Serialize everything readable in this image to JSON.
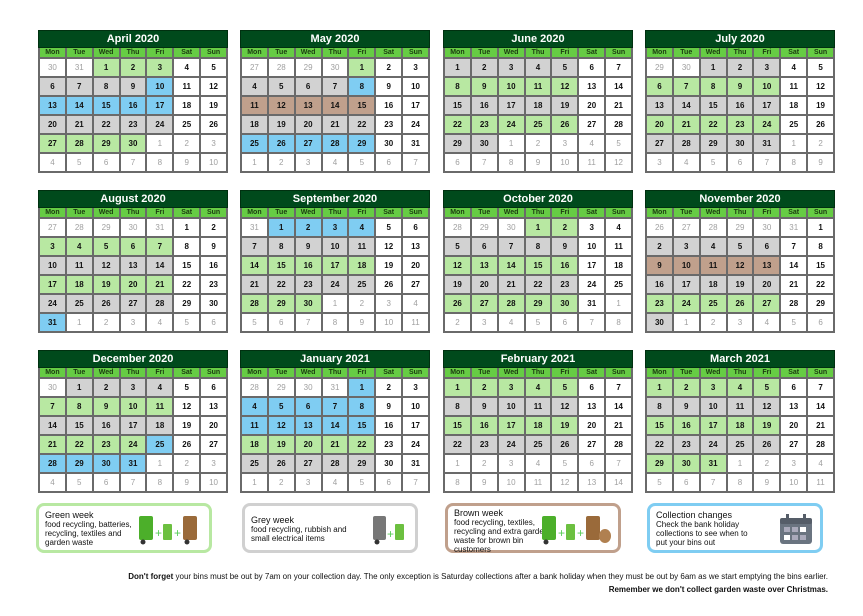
{
  "weekdays": [
    "Mon",
    "Tue",
    "Wed",
    "Thu",
    "Fri",
    "Sat",
    "Sun"
  ],
  "colors": {
    "title": "#004a1c",
    "header": "#66cc44",
    "green": "#b8e8a2",
    "grey": "#d2d2d2",
    "blue": "#7fcdf2",
    "brown": "#c0a08c"
  },
  "type_codes": {
    "o": "other-month",
    "w": "no-collection",
    "g": "green-week",
    "y": "grey-week",
    "b": "collection-change",
    "r": "brown-week"
  },
  "months": [
    {
      "title": "April 2020",
      "weeks": [
        [
          30,
          31,
          1,
          2,
          3,
          4,
          5
        ],
        [
          6,
          7,
          8,
          9,
          10,
          11,
          12
        ],
        [
          13,
          14,
          15,
          16,
          17,
          18,
          19
        ],
        [
          20,
          21,
          22,
          23,
          24,
          25,
          26
        ],
        [
          27,
          28,
          29,
          30,
          1,
          2,
          3
        ],
        [
          4,
          5,
          6,
          7,
          8,
          9,
          10
        ]
      ],
      "types": [
        "oogggww",
        "yyyybww",
        "bbbbbww",
        "yyyyyww",
        "ggggooo",
        "ooooooo"
      ]
    },
    {
      "title": "May 2020",
      "weeks": [
        [
          27,
          28,
          29,
          30,
          1,
          2,
          3
        ],
        [
          4,
          5,
          6,
          7,
          8,
          9,
          10
        ],
        [
          11,
          12,
          13,
          14,
          15,
          16,
          17
        ],
        [
          18,
          19,
          20,
          21,
          22,
          23,
          24
        ],
        [
          25,
          26,
          27,
          28,
          29,
          30,
          31
        ],
        [
          1,
          2,
          3,
          4,
          5,
          6,
          7
        ]
      ],
      "types": [
        "oooogww",
        "yyyybww",
        "rrrrrww",
        "yyyyyww",
        "bbbbbww",
        "ooooooo"
      ]
    },
    {
      "title": "June 2020",
      "weeks": [
        [
          1,
          2,
          3,
          4,
          5,
          6,
          7
        ],
        [
          8,
          9,
          10,
          11,
          12,
          13,
          14
        ],
        [
          15,
          16,
          17,
          18,
          19,
          20,
          21
        ],
        [
          22,
          23,
          24,
          25,
          26,
          27,
          28
        ],
        [
          29,
          30,
          1,
          2,
          3,
          4,
          5
        ],
        [
          6,
          7,
          8,
          9,
          10,
          11,
          12
        ]
      ],
      "types": [
        "yyyyyww",
        "gggggww",
        "yyyyyww",
        "gggggww",
        "yyooooo",
        "ooooooo"
      ]
    },
    {
      "title": "July 2020",
      "weeks": [
        [
          29,
          30,
          1,
          2,
          3,
          4,
          5
        ],
        [
          6,
          7,
          8,
          9,
          10,
          11,
          12
        ],
        [
          13,
          14,
          15,
          16,
          17,
          18,
          19
        ],
        [
          20,
          21,
          22,
          23,
          24,
          25,
          26
        ],
        [
          27,
          28,
          29,
          30,
          31,
          1,
          2
        ],
        [
          3,
          4,
          5,
          6,
          7,
          8,
          9
        ]
      ],
      "types": [
        "ooyyyww",
        "gggggww",
        "yyyyyww",
        "gggggww",
        "yyyyyoo",
        "ooooooo"
      ]
    },
    {
      "title": "August 2020",
      "weeks": [
        [
          27,
          28,
          29,
          30,
          31,
          1,
          2
        ],
        [
          3,
          4,
          5,
          6,
          7,
          8,
          9
        ],
        [
          10,
          11,
          12,
          13,
          14,
          15,
          16
        ],
        [
          17,
          18,
          19,
          20,
          21,
          22,
          23
        ],
        [
          24,
          25,
          26,
          27,
          28,
          29,
          30
        ],
        [
          31,
          1,
          2,
          3,
          4,
          5,
          6
        ]
      ],
      "types": [
        "oooooww",
        "gggggww",
        "yyyyyww",
        "gggggww",
        "yyyyyww",
        "boooooo"
      ]
    },
    {
      "title": "September 2020",
      "weeks": [
        [
          31,
          1,
          2,
          3,
          4,
          5,
          6
        ],
        [
          7,
          8,
          9,
          10,
          11,
          12,
          13
        ],
        [
          14,
          15,
          16,
          17,
          18,
          19,
          20
        ],
        [
          21,
          22,
          23,
          24,
          25,
          26,
          27
        ],
        [
          28,
          29,
          30,
          1,
          2,
          3,
          4
        ],
        [
          5,
          6,
          7,
          8,
          9,
          10,
          11
        ]
      ],
      "types": [
        "obbbbww",
        "yyyyyww",
        "gggggww",
        "yyyyyww",
        "gggoooo",
        "ooooooo"
      ]
    },
    {
      "title": "October 2020",
      "weeks": [
        [
          28,
          29,
          30,
          1,
          2,
          3,
          4
        ],
        [
          5,
          6,
          7,
          8,
          9,
          10,
          11
        ],
        [
          12,
          13,
          14,
          15,
          16,
          17,
          18
        ],
        [
          19,
          20,
          21,
          22,
          23,
          24,
          25
        ],
        [
          26,
          27,
          28,
          29,
          30,
          31,
          1
        ],
        [
          2,
          3,
          4,
          5,
          6,
          7,
          8
        ]
      ],
      "types": [
        "oooggww",
        "yyyyyww",
        "gggggww",
        "yyyyyww",
        "gggggwo",
        "ooooooo"
      ]
    },
    {
      "title": "November 2020",
      "weeks": [
        [
          26,
          27,
          28,
          29,
          30,
          31,
          1
        ],
        [
          2,
          3,
          4,
          5,
          6,
          7,
          8
        ],
        [
          9,
          10,
          11,
          12,
          13,
          14,
          15
        ],
        [
          16,
          17,
          18,
          19,
          20,
          21,
          22
        ],
        [
          23,
          24,
          25,
          26,
          27,
          28,
          29
        ],
        [
          30,
          1,
          2,
          3,
          4,
          5,
          6
        ]
      ],
      "types": [
        "oooooow",
        "yyyyyww",
        "rrrrrww",
        "yyyyyww",
        "gggggww",
        "yoooooo"
      ]
    },
    {
      "title": "December 2020",
      "weeks": [
        [
          30,
          1,
          2,
          3,
          4,
          5,
          6
        ],
        [
          7,
          8,
          9,
          10,
          11,
          12,
          13
        ],
        [
          14,
          15,
          16,
          17,
          18,
          19,
          20
        ],
        [
          21,
          22,
          23,
          24,
          25,
          26,
          27
        ],
        [
          28,
          29,
          30,
          31,
          1,
          2,
          3
        ],
        [
          4,
          5,
          6,
          7,
          8,
          9,
          10
        ]
      ],
      "types": [
        "oyyyyww",
        "gggggww",
        "yyyyyww",
        "ggggbww",
        "bbbbooo",
        "ooooooo"
      ]
    },
    {
      "title": "January 2021",
      "weeks": [
        [
          28,
          29,
          30,
          31,
          1,
          2,
          3
        ],
        [
          4,
          5,
          6,
          7,
          8,
          9,
          10
        ],
        [
          11,
          12,
          13,
          14,
          15,
          16,
          17
        ],
        [
          18,
          19,
          20,
          21,
          22,
          23,
          24
        ],
        [
          25,
          26,
          27,
          28,
          29,
          30,
          31
        ],
        [
          1,
          2,
          3,
          4,
          5,
          6,
          7
        ]
      ],
      "types": [
        "oooobww",
        "bbbbbww",
        "bbbbbww",
        "gggggww",
        "yyyyyww",
        "ooooooo"
      ]
    },
    {
      "title": "February 2021",
      "weeks": [
        [
          1,
          2,
          3,
          4,
          5,
          6,
          7
        ],
        [
          8,
          9,
          10,
          11,
          12,
          13,
          14
        ],
        [
          15,
          16,
          17,
          18,
          19,
          20,
          21
        ],
        [
          22,
          23,
          24,
          25,
          26,
          27,
          28
        ],
        [
          1,
          2,
          3,
          4,
          5,
          6,
          7
        ],
        [
          8,
          9,
          10,
          11,
          12,
          13,
          14
        ]
      ],
      "types": [
        "gggggww",
        "yyyyyww",
        "gggggww",
        "yyyyyww",
        "ooooooo",
        "ooooooo"
      ]
    },
    {
      "title": "March 2021",
      "weeks": [
        [
          1,
          2,
          3,
          4,
          5,
          6,
          7
        ],
        [
          8,
          9,
          10,
          11,
          12,
          13,
          14
        ],
        [
          15,
          16,
          17,
          18,
          19,
          20,
          21
        ],
        [
          22,
          23,
          24,
          25,
          26,
          27,
          28
        ],
        [
          29,
          30,
          31,
          1,
          2,
          3,
          4
        ],
        [
          5,
          6,
          7,
          8,
          9,
          10,
          11
        ]
      ],
      "types": [
        "gggggww",
        "yyyyyww",
        "gggggww",
        "yyyyyww",
        "gggoooo",
        "ooooooo"
      ]
    }
  ],
  "legend": {
    "green": {
      "title": "Green week",
      "desc": "food recycling, batteries, recycling, textiles and garden waste",
      "icon": "green-brown-bins-icon"
    },
    "grey": {
      "title": "Grey week",
      "desc": "food recycling, rubbish and small electrical items",
      "icon": "grey-bin-food-caddy-icon"
    },
    "brown": {
      "title": "Brown week",
      "desc": "food recycling, textiles, recycling and extra garden waste for brown bin customers",
      "icon": "bins-garden-sack-icon"
    },
    "changes": {
      "title": "Collection changes",
      "desc": "Check the bank holiday collections to see when to put your bins out",
      "icon": "calendar-icon"
    }
  },
  "footer": {
    "line1_bold": "Don't forget",
    "line1_rest": " your bins must be out by 7am on your collection day. The only exception is Saturday collections after a bank holiday when they must be out by 6am as we start emptying the bins earlier.",
    "line2": "Remember we don't collect garden waste over Christmas."
  }
}
